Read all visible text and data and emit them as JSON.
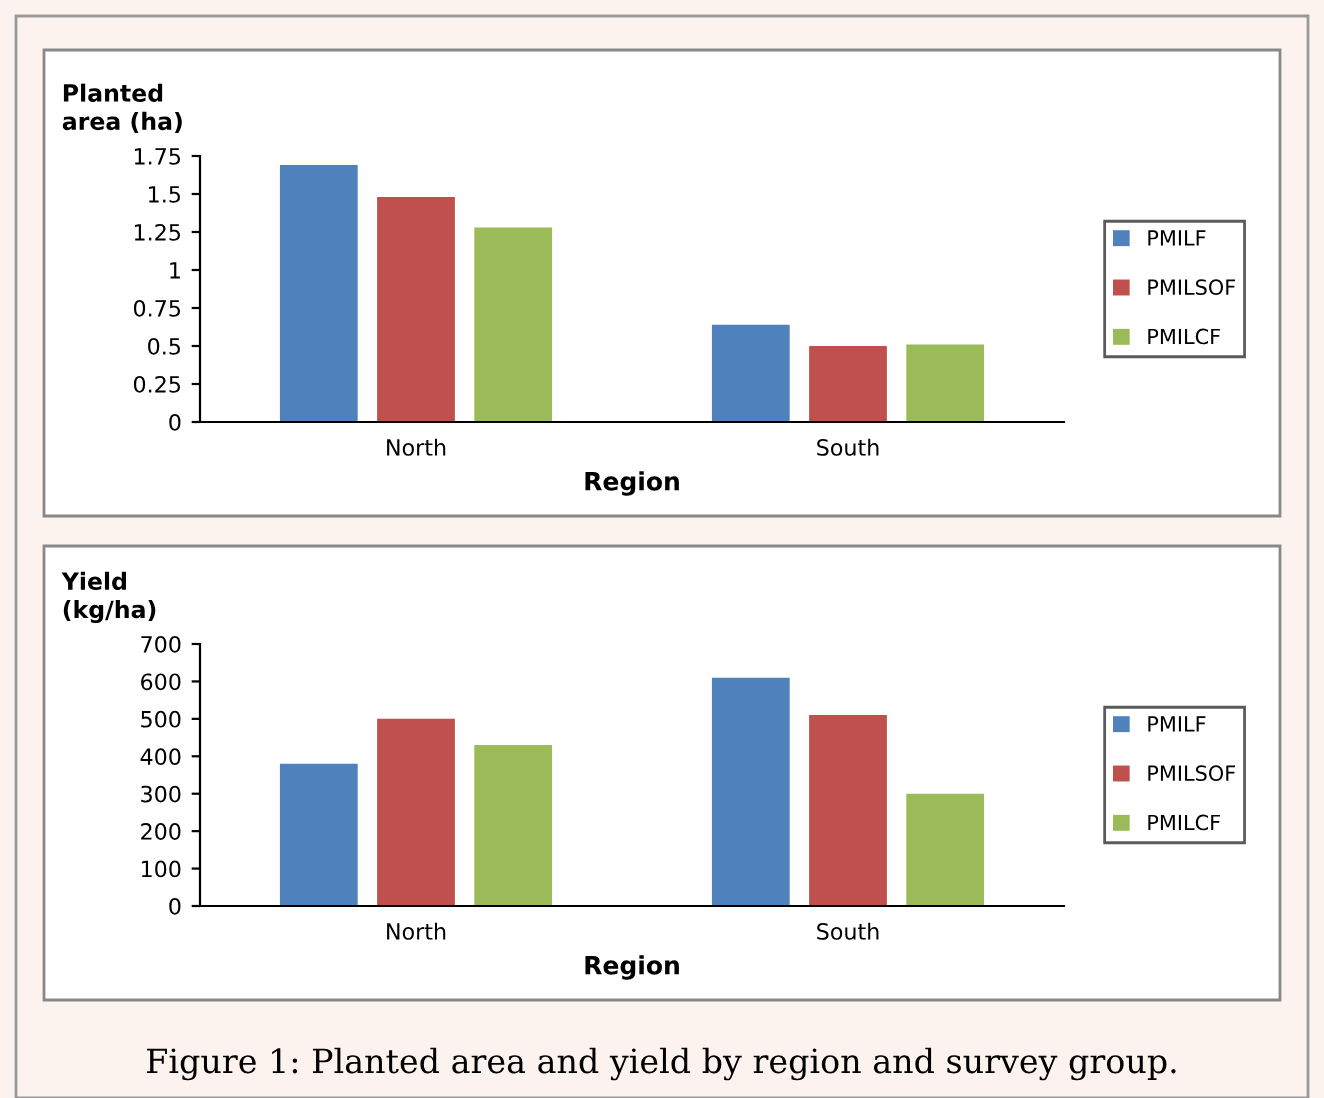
{
  "chart_data": [
    {
      "type": "bar",
      "ylabel": "Planted\narea (ha)",
      "xlabel": "Region",
      "categories": [
        "North",
        "South"
      ],
      "series": [
        {
          "name": "PMILF",
          "color": "#4f81bd",
          "values": [
            1.69,
            0.64
          ]
        },
        {
          "name": "PMILSOF",
          "color": "#c0504d",
          "values": [
            1.48,
            0.5
          ]
        },
        {
          "name": "PMILCF",
          "color": "#9bbb59",
          "values": [
            1.28,
            0.51
          ]
        }
      ],
      "ylim": [
        0,
        1.75
      ],
      "yticks": [
        0,
        0.25,
        0.5,
        0.75,
        1,
        1.25,
        1.5,
        1.75
      ],
      "legend": "right",
      "grid": false
    },
    {
      "type": "bar",
      "ylabel": "Yield\n(kg/ha)",
      "xlabel": "Region",
      "categories": [
        "North",
        "South"
      ],
      "series": [
        {
          "name": "PMILF",
          "color": "#4f81bd",
          "values": [
            380,
            610
          ]
        },
        {
          "name": "PMILSOF",
          "color": "#c0504d",
          "values": [
            500,
            510
          ]
        },
        {
          "name": "PMILCF",
          "color": "#9bbb59",
          "values": [
            430,
            300
          ]
        }
      ],
      "ylim": [
        0,
        700
      ],
      "yticks": [
        0,
        100,
        200,
        300,
        400,
        500,
        600,
        700
      ],
      "legend": "right",
      "grid": false,
      "annotations": [
        "Figure 1: Planted area and yield by region and survey group."
      ]
    }
  ]
}
